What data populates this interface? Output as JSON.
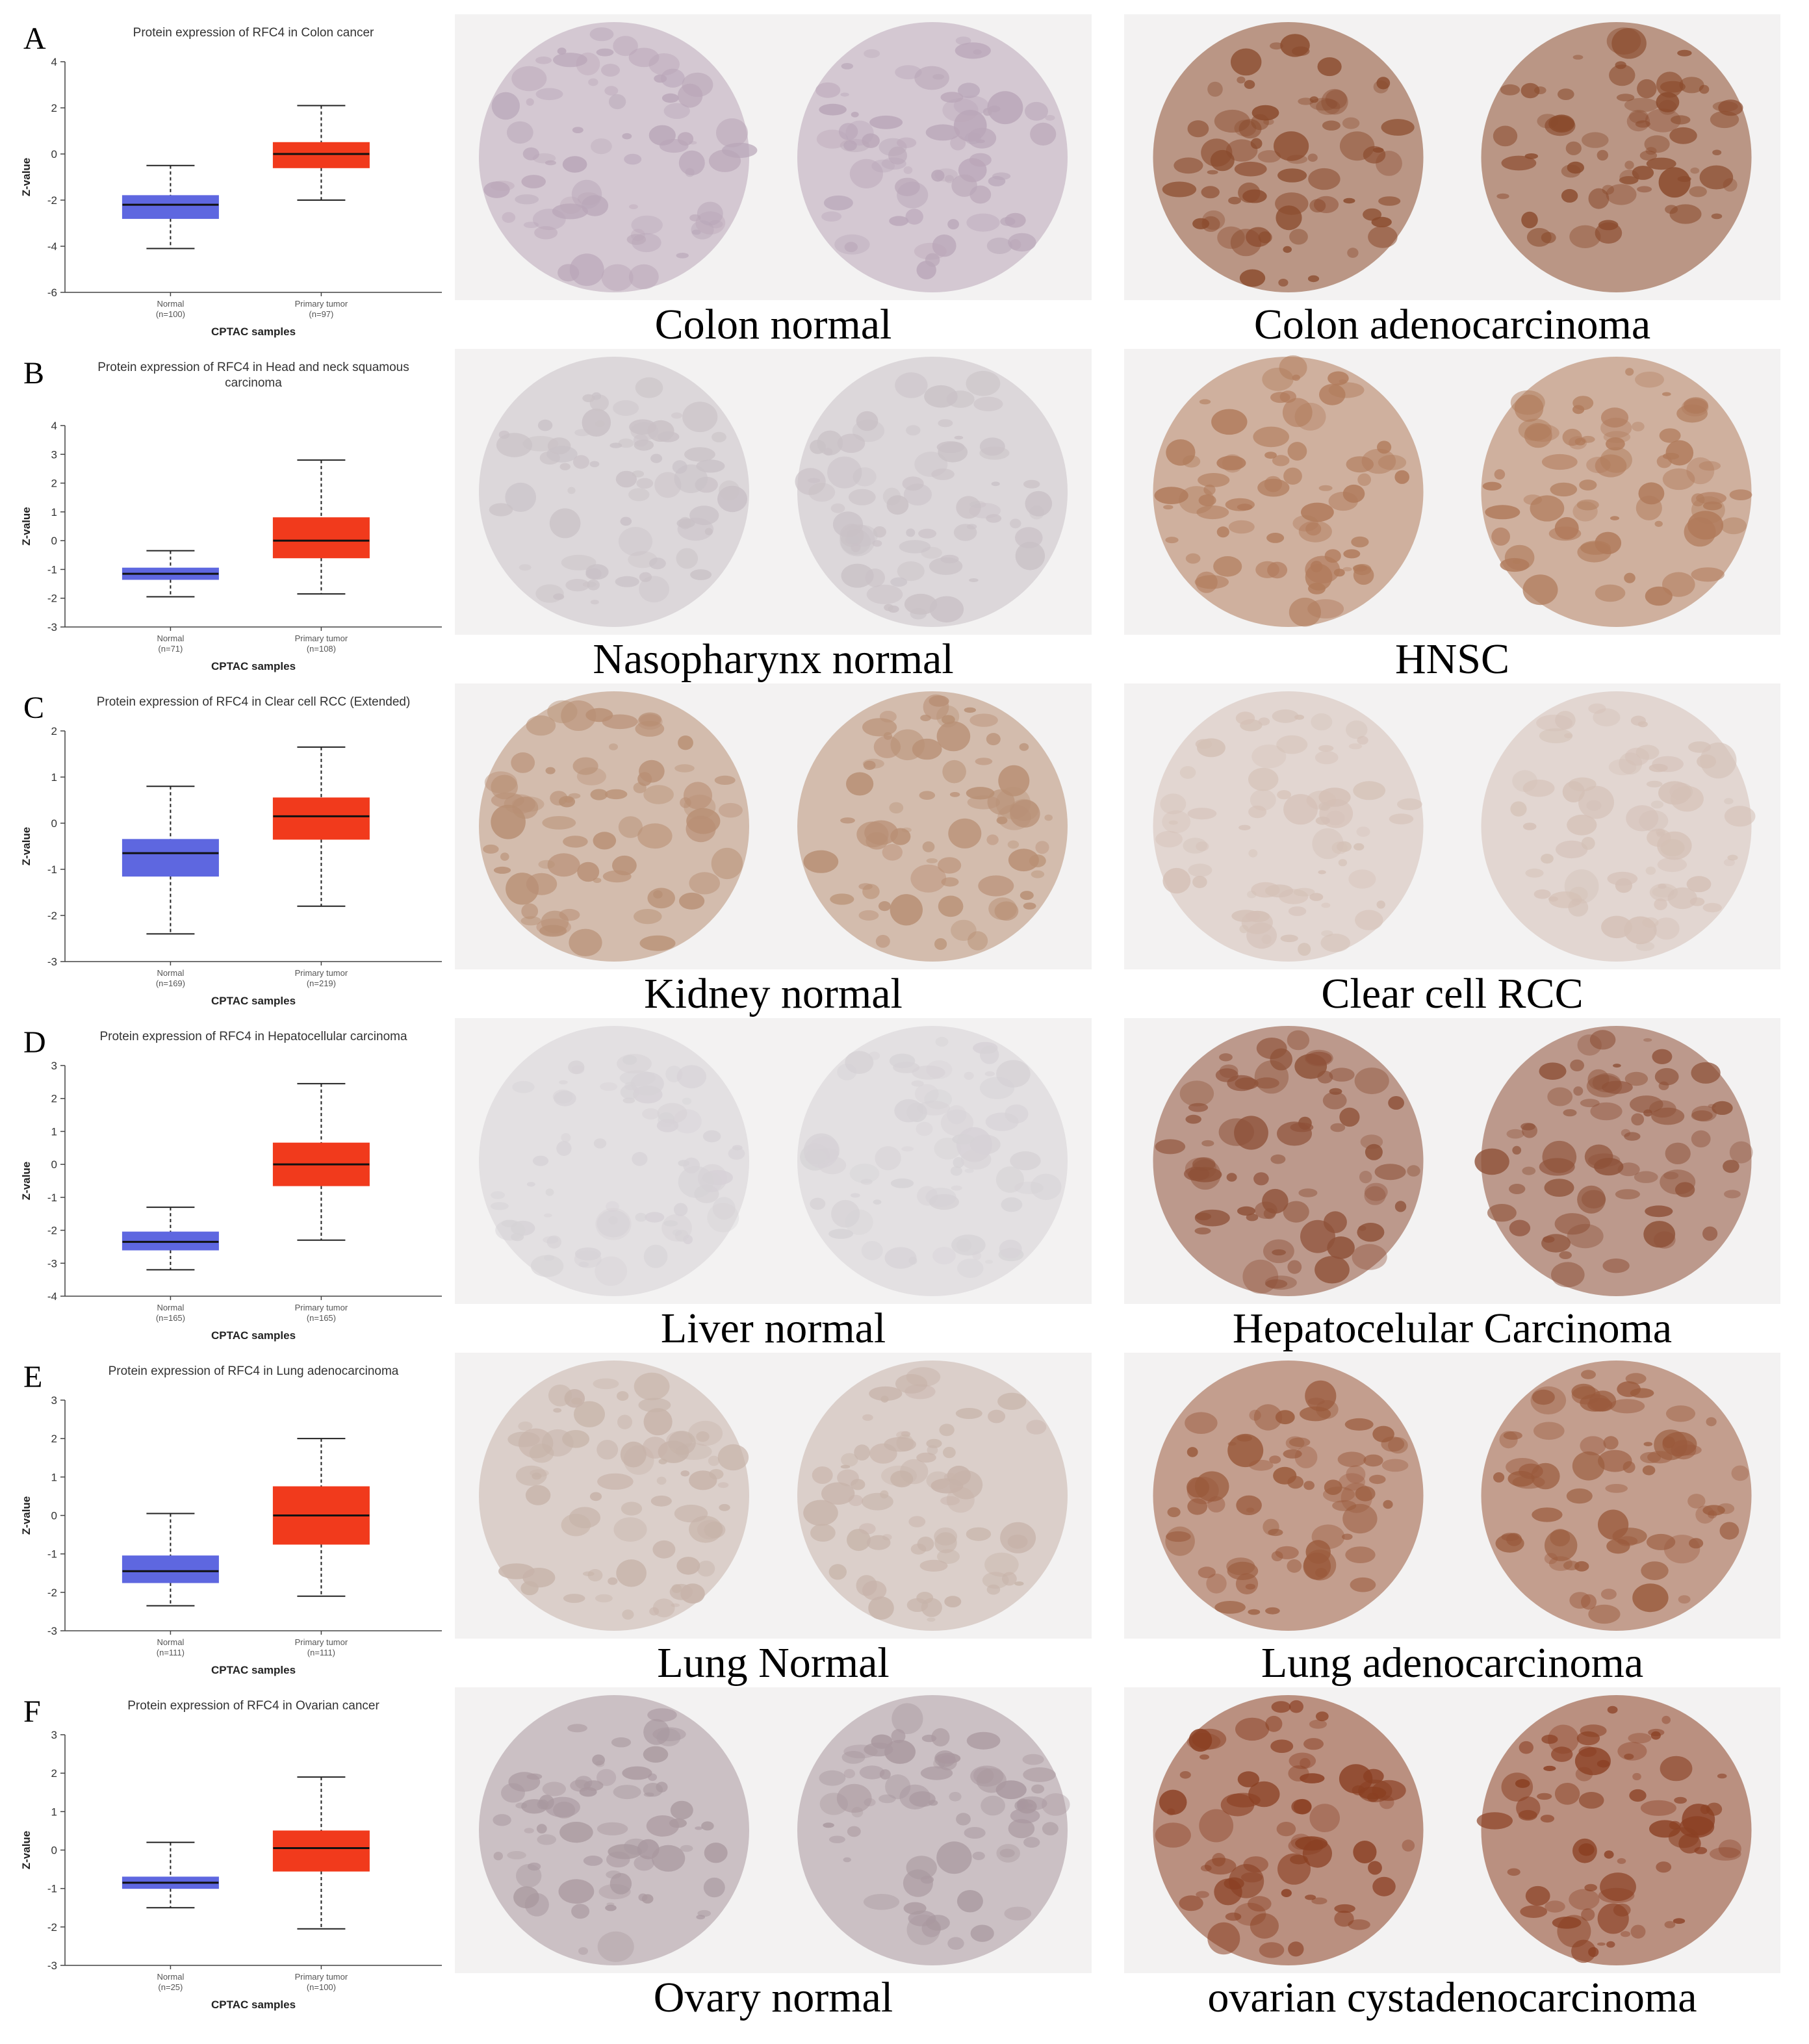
{
  "panels": [
    {
      "letter": "A",
      "normal_caption": "Colon normal",
      "tumor_caption": "Colon adenocarcinoma",
      "normal_tint": "#b9a6b8",
      "tumor_tint": "#8a4a2c"
    },
    {
      "letter": "B",
      "normal_caption": "Nasopharynx normal",
      "tumor_caption": "HNSC",
      "normal_tint": "#c9c1c6",
      "tumor_tint": "#b07a5a"
    },
    {
      "letter": "C",
      "normal_caption": "Kidney normal",
      "tumor_caption": "Clear cell RCC",
      "normal_tint": "#b88f74",
      "tumor_tint": "#d4c0b6"
    },
    {
      "letter": "D",
      "normal_caption": "Liver normal",
      "tumor_caption": "Hepatocelular Carcinoma",
      "normal_tint": "#d6d2d6",
      "tumor_tint": "#8e5138"
    },
    {
      "letter": "E",
      "normal_caption": "Lung Normal",
      "tumor_caption": "Lung adenocarcinoma",
      "normal_tint": "#c7b3a9",
      "tumor_tint": "#9a5a3c"
    },
    {
      "letter": "F",
      "normal_caption": "Ovary normal",
      "tumor_caption": "ovarian cystadenocarcinoma",
      "normal_tint": "#a9989f",
      "tumor_tint": "#8a3f22"
    }
  ],
  "colors": {
    "normal_box": "#5e67e0",
    "tumor_box": "#f13a1c"
  },
  "chart_data": [
    {
      "type": "box",
      "title": [
        "Protein expression of RFC4 in Colon cancer"
      ],
      "ylabel": "Z-value",
      "xlabel": "CPTAC samples",
      "ylim": [
        -6,
        4
      ],
      "yticks": [
        4,
        2,
        0,
        -2,
        -4,
        -6
      ],
      "categories": [
        {
          "name": "Normal",
          "n": "(n=100)",
          "min": -4.1,
          "q1": -2.8,
          "median": -2.2,
          "q3": -1.8,
          "max": -0.5
        },
        {
          "name": "Primary tumor",
          "n": "(n=97)",
          "min": -2.0,
          "q1": -0.6,
          "median": 0.0,
          "q3": 0.5,
          "max": 2.1
        }
      ]
    },
    {
      "type": "box",
      "title": [
        "Protein expression of RFC4 in Head and neck squamous",
        "carcinoma"
      ],
      "ylabel": "Z-value",
      "xlabel": "CPTAC samples",
      "ylim": [
        -3,
        4
      ],
      "yticks": [
        4,
        3,
        2,
        1,
        0,
        -1,
        -2,
        -3
      ],
      "categories": [
        {
          "name": "Normal",
          "n": "(n=71)",
          "min": -1.95,
          "q1": -1.35,
          "median": -1.15,
          "q3": -0.95,
          "max": -0.35
        },
        {
          "name": "Primary tumor",
          "n": "(n=108)",
          "min": -1.85,
          "q1": -0.6,
          "median": 0.0,
          "q3": 0.8,
          "max": 2.8
        }
      ]
    },
    {
      "type": "box",
      "title": [
        "Protein expression of RFC4 in Clear cell RCC (Extended)"
      ],
      "ylabel": "Z-value",
      "xlabel": "CPTAC samples",
      "ylim": [
        -3,
        2
      ],
      "yticks": [
        2,
        1,
        0,
        -1,
        -2,
        -3
      ],
      "categories": [
        {
          "name": "Normal",
          "n": "(n=169)",
          "min": -2.4,
          "q1": -1.15,
          "median": -0.65,
          "q3": -0.35,
          "max": 0.8
        },
        {
          "name": "Primary tumor",
          "n": "(n=219)",
          "min": -1.8,
          "q1": -0.35,
          "median": 0.15,
          "q3": 0.55,
          "max": 1.65
        }
      ]
    },
    {
      "type": "box",
      "title": [
        "Protein expression of RFC4 in Hepatocellular carcinoma"
      ],
      "ylabel": "Z-value",
      "xlabel": "CPTAC samples",
      "ylim": [
        -4,
        3
      ],
      "yticks": [
        3,
        2,
        1,
        0,
        -1,
        -2,
        -3,
        -4
      ],
      "categories": [
        {
          "name": "Normal",
          "n": "(n=165)",
          "min": -3.2,
          "q1": -2.6,
          "median": -2.35,
          "q3": -2.05,
          "max": -1.3
        },
        {
          "name": "Primary tumor",
          "n": "(n=165)",
          "min": -2.3,
          "q1": -0.65,
          "median": 0.0,
          "q3": 0.65,
          "max": 2.45
        }
      ]
    },
    {
      "type": "box",
      "title": [
        "Protein expression of RFC4 in Lung adenocarcinoma"
      ],
      "ylabel": "Z-value",
      "xlabel": "CPTAC samples",
      "ylim": [
        -3,
        3
      ],
      "yticks": [
        3,
        2,
        1,
        0,
        -1,
        -2,
        -3
      ],
      "categories": [
        {
          "name": "Normal",
          "n": "(n=111)",
          "min": -2.35,
          "q1": -1.75,
          "median": -1.45,
          "q3": -1.05,
          "max": 0.05
        },
        {
          "name": "Primary tumor",
          "n": "(n=111)",
          "min": -2.1,
          "q1": -0.75,
          "median": 0.0,
          "q3": 0.75,
          "max": 2.0
        }
      ]
    },
    {
      "type": "box",
      "title": [
        "Protein expression of RFC4 in Ovarian cancer"
      ],
      "ylabel": "Z-value",
      "xlabel": "CPTAC samples",
      "ylim": [
        -3,
        3
      ],
      "yticks": [
        3,
        2,
        1,
        0,
        -1,
        -2,
        -3
      ],
      "categories": [
        {
          "name": "Normal",
          "n": "(n=25)",
          "min": -1.5,
          "q1": -1.0,
          "median": -0.85,
          "q3": -0.7,
          "max": 0.2
        },
        {
          "name": "Primary tumor",
          "n": "(n=100)",
          "min": -2.05,
          "q1": -0.55,
          "median": 0.05,
          "q3": 0.5,
          "max": 1.9
        }
      ]
    }
  ]
}
